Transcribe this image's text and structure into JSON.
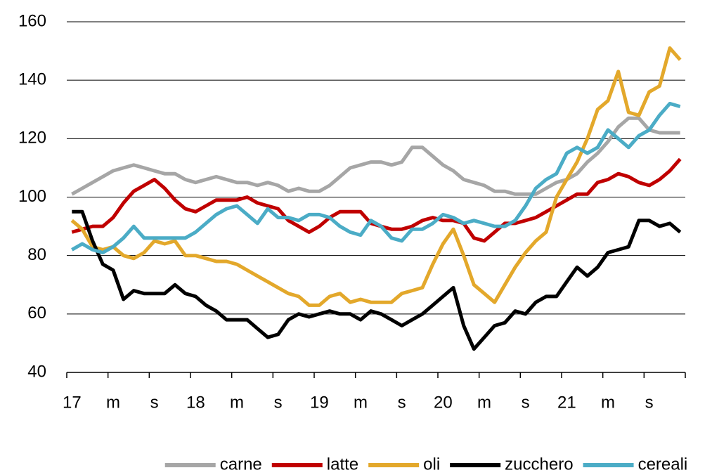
{
  "chart_data": {
    "type": "line",
    "categories": [
      "17",
      null,
      null,
      null,
      "m",
      null,
      null,
      null,
      "s",
      null,
      null,
      null,
      "18",
      null,
      null,
      null,
      "m",
      null,
      null,
      null,
      "s",
      null,
      null,
      null,
      "19",
      null,
      null,
      null,
      "m",
      null,
      null,
      null,
      "s",
      null,
      null,
      null,
      "20",
      null,
      null,
      null,
      "m",
      null,
      null,
      null,
      "s",
      null,
      null,
      null,
      "21",
      null,
      null,
      null,
      "m",
      null,
      null,
      null,
      "s",
      null,
      null,
      null
    ],
    "series": [
      {
        "name": "carne",
        "color": "#a6a6a6",
        "values": [
          101,
          103,
          105,
          107,
          109,
          110,
          111,
          110,
          109,
          108,
          108,
          106,
          105,
          106,
          107,
          106,
          105,
          105,
          104,
          105,
          104,
          102,
          103,
          102,
          102,
          104,
          107,
          110,
          111,
          112,
          112,
          111,
          112,
          117,
          117,
          114,
          111,
          109,
          106,
          105,
          104,
          102,
          102,
          101,
          101,
          101,
          103,
          105,
          106,
          108,
          112,
          115,
          119,
          124,
          127,
          127,
          123,
          122,
          122,
          122
        ]
      },
      {
        "name": "latte",
        "color": "#c00000",
        "values": [
          88,
          89,
          90,
          90,
          93,
          98,
          102,
          104,
          106,
          103,
          99,
          96,
          95,
          97,
          99,
          99,
          99,
          100,
          98,
          97,
          96,
          92,
          90,
          88,
          90,
          93,
          95,
          95,
          95,
          91,
          90,
          89,
          89,
          90,
          92,
          93,
          92,
          92,
          91,
          86,
          85,
          88,
          91,
          91,
          92,
          93,
          95,
          97,
          99,
          101,
          101,
          105,
          106,
          108,
          107,
          105,
          104,
          106,
          109,
          113
        ]
      },
      {
        "name": "oli",
        "color": "#e3a82b",
        "values": [
          92,
          89,
          83,
          82,
          83,
          80,
          79,
          81,
          85,
          84,
          85,
          80,
          80,
          79,
          78,
          78,
          77,
          75,
          73,
          71,
          69,
          67,
          66,
          63,
          63,
          66,
          67,
          64,
          65,
          64,
          64,
          64,
          67,
          68,
          69,
          77,
          84,
          89,
          80,
          70,
          67,
          64,
          70,
          76,
          81,
          85,
          88,
          100,
          106,
          112,
          120,
          130,
          133,
          143,
          129,
          128,
          136,
          138,
          151,
          147
        ]
      },
      {
        "name": "zucchero",
        "color": "#000000",
        "values": [
          95,
          95,
          85,
          77,
          75,
          65,
          68,
          67,
          67,
          67,
          70,
          67,
          66,
          63,
          61,
          58,
          58,
          58,
          55,
          52,
          53,
          58,
          60,
          59,
          60,
          61,
          60,
          60,
          58,
          61,
          60,
          58,
          56,
          58,
          60,
          63,
          66,
          69,
          56,
          48,
          52,
          56,
          57,
          61,
          60,
          64,
          66,
          66,
          71,
          76,
          73,
          76,
          81,
          82,
          83,
          92,
          92,
          90,
          91,
          88
        ]
      },
      {
        "name": "cereali",
        "color": "#4bacc6",
        "values": [
          82,
          84,
          82,
          81,
          83,
          86,
          90,
          86,
          86,
          86,
          86,
          86,
          88,
          91,
          94,
          96,
          97,
          94,
          91,
          96,
          93,
          93,
          92,
          94,
          94,
          93,
          90,
          88,
          87,
          92,
          90,
          86,
          85,
          89,
          89,
          91,
          94,
          93,
          91,
          92,
          91,
          90,
          90,
          92,
          97,
          103,
          106,
          108,
          115,
          117,
          115,
          117,
          123,
          120,
          117,
          121,
          123,
          128,
          132,
          131
        ]
      }
    ],
    "ylim": [
      40,
      160
    ],
    "yticks": [
      40,
      60,
      80,
      100,
      120,
      140,
      160
    ],
    "grid": true,
    "legend": "bottom"
  }
}
